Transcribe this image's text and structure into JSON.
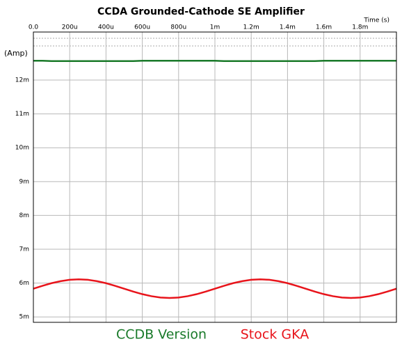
{
  "chart_data": {
    "type": "line",
    "title": "CCDA Grounded-Cathode SE Amplifier",
    "x_label": "Time  (s)",
    "y_label": "(Amp)",
    "x": [
      0,
      5e-05,
      0.0001,
      0.00015,
      0.0002,
      0.00025,
      0.0003,
      0.00035,
      0.0004,
      0.00045,
      0.0005,
      0.00055,
      0.0006,
      0.00065,
      0.0007,
      0.00075,
      0.0008,
      0.00085,
      0.0009,
      0.00095,
      0.001,
      0.00105,
      0.0011,
      0.00115,
      0.0012,
      0.00125,
      0.0013,
      0.00135,
      0.0014,
      0.00145,
      0.0015,
      0.00155,
      0.0016,
      0.00165,
      0.0017,
      0.00175,
      0.0018,
      0.00185,
      0.0019,
      0.00195,
      0.002
    ],
    "series": [
      {
        "name": "CCDB Version",
        "color": "#1a7a2a",
        "values": [
          0.01257,
          0.01257,
          0.01256,
          0.01256,
          0.01256,
          0.01256,
          0.01256,
          0.01256,
          0.01256,
          0.01256,
          0.01256,
          0.01256,
          0.01257,
          0.01257,
          0.01257,
          0.01257,
          0.01257,
          0.01257,
          0.01257,
          0.01257,
          0.01257,
          0.01256,
          0.01256,
          0.01256,
          0.01256,
          0.01256,
          0.01256,
          0.01256,
          0.01256,
          0.01256,
          0.01256,
          0.01256,
          0.01257,
          0.01257,
          0.01257,
          0.01257,
          0.01257,
          0.01257,
          0.01257,
          0.01257,
          0.01257
        ]
      },
      {
        "name": "Stock GKA",
        "color": "#e8141b",
        "values": [
          0.005835,
          0.00592,
          0.005997,
          0.006057,
          0.006097,
          0.00611,
          0.006097,
          0.006057,
          0.005997,
          0.00592,
          0.005835,
          0.00575,
          0.005673,
          0.005613,
          0.005573,
          0.00556,
          0.005573,
          0.005613,
          0.005673,
          0.00575,
          0.005835,
          0.00592,
          0.005997,
          0.006057,
          0.006097,
          0.00611,
          0.006097,
          0.006057,
          0.005997,
          0.00592,
          0.005835,
          0.00575,
          0.005673,
          0.005613,
          0.005573,
          0.00556,
          0.005573,
          0.005613,
          0.005673,
          0.00575,
          0.005835
        ]
      }
    ],
    "xlim": [
      0,
      0.002
    ],
    "xticks": [
      {
        "value": 0,
        "label": "0.0"
      },
      {
        "value": 0.0002,
        "label": "200u"
      },
      {
        "value": 0.0004,
        "label": "400u"
      },
      {
        "value": 0.0006,
        "label": "600u"
      },
      {
        "value": 0.0008,
        "label": "800u"
      },
      {
        "value": 0.001,
        "label": "1m"
      },
      {
        "value": 0.0012,
        "label": "1.2m"
      },
      {
        "value": 0.0014,
        "label": "1.4m"
      },
      {
        "value": 0.0016,
        "label": "1.6m"
      },
      {
        "value": 0.0018,
        "label": "1.8m"
      }
    ],
    "ylim": [
      0.00484,
      0.01342
    ],
    "yticks": [
      {
        "value": 0.005,
        "label": "5m"
      },
      {
        "value": 0.006,
        "label": "6m"
      },
      {
        "value": 0.007,
        "label": "7m"
      },
      {
        "value": 0.008,
        "label": "8m"
      },
      {
        "value": 0.009,
        "label": "9m"
      },
      {
        "value": 0.01,
        "label": "10m"
      },
      {
        "value": 0.011,
        "label": "11m"
      },
      {
        "value": 0.012,
        "label": "12m"
      }
    ],
    "grid": true
  }
}
